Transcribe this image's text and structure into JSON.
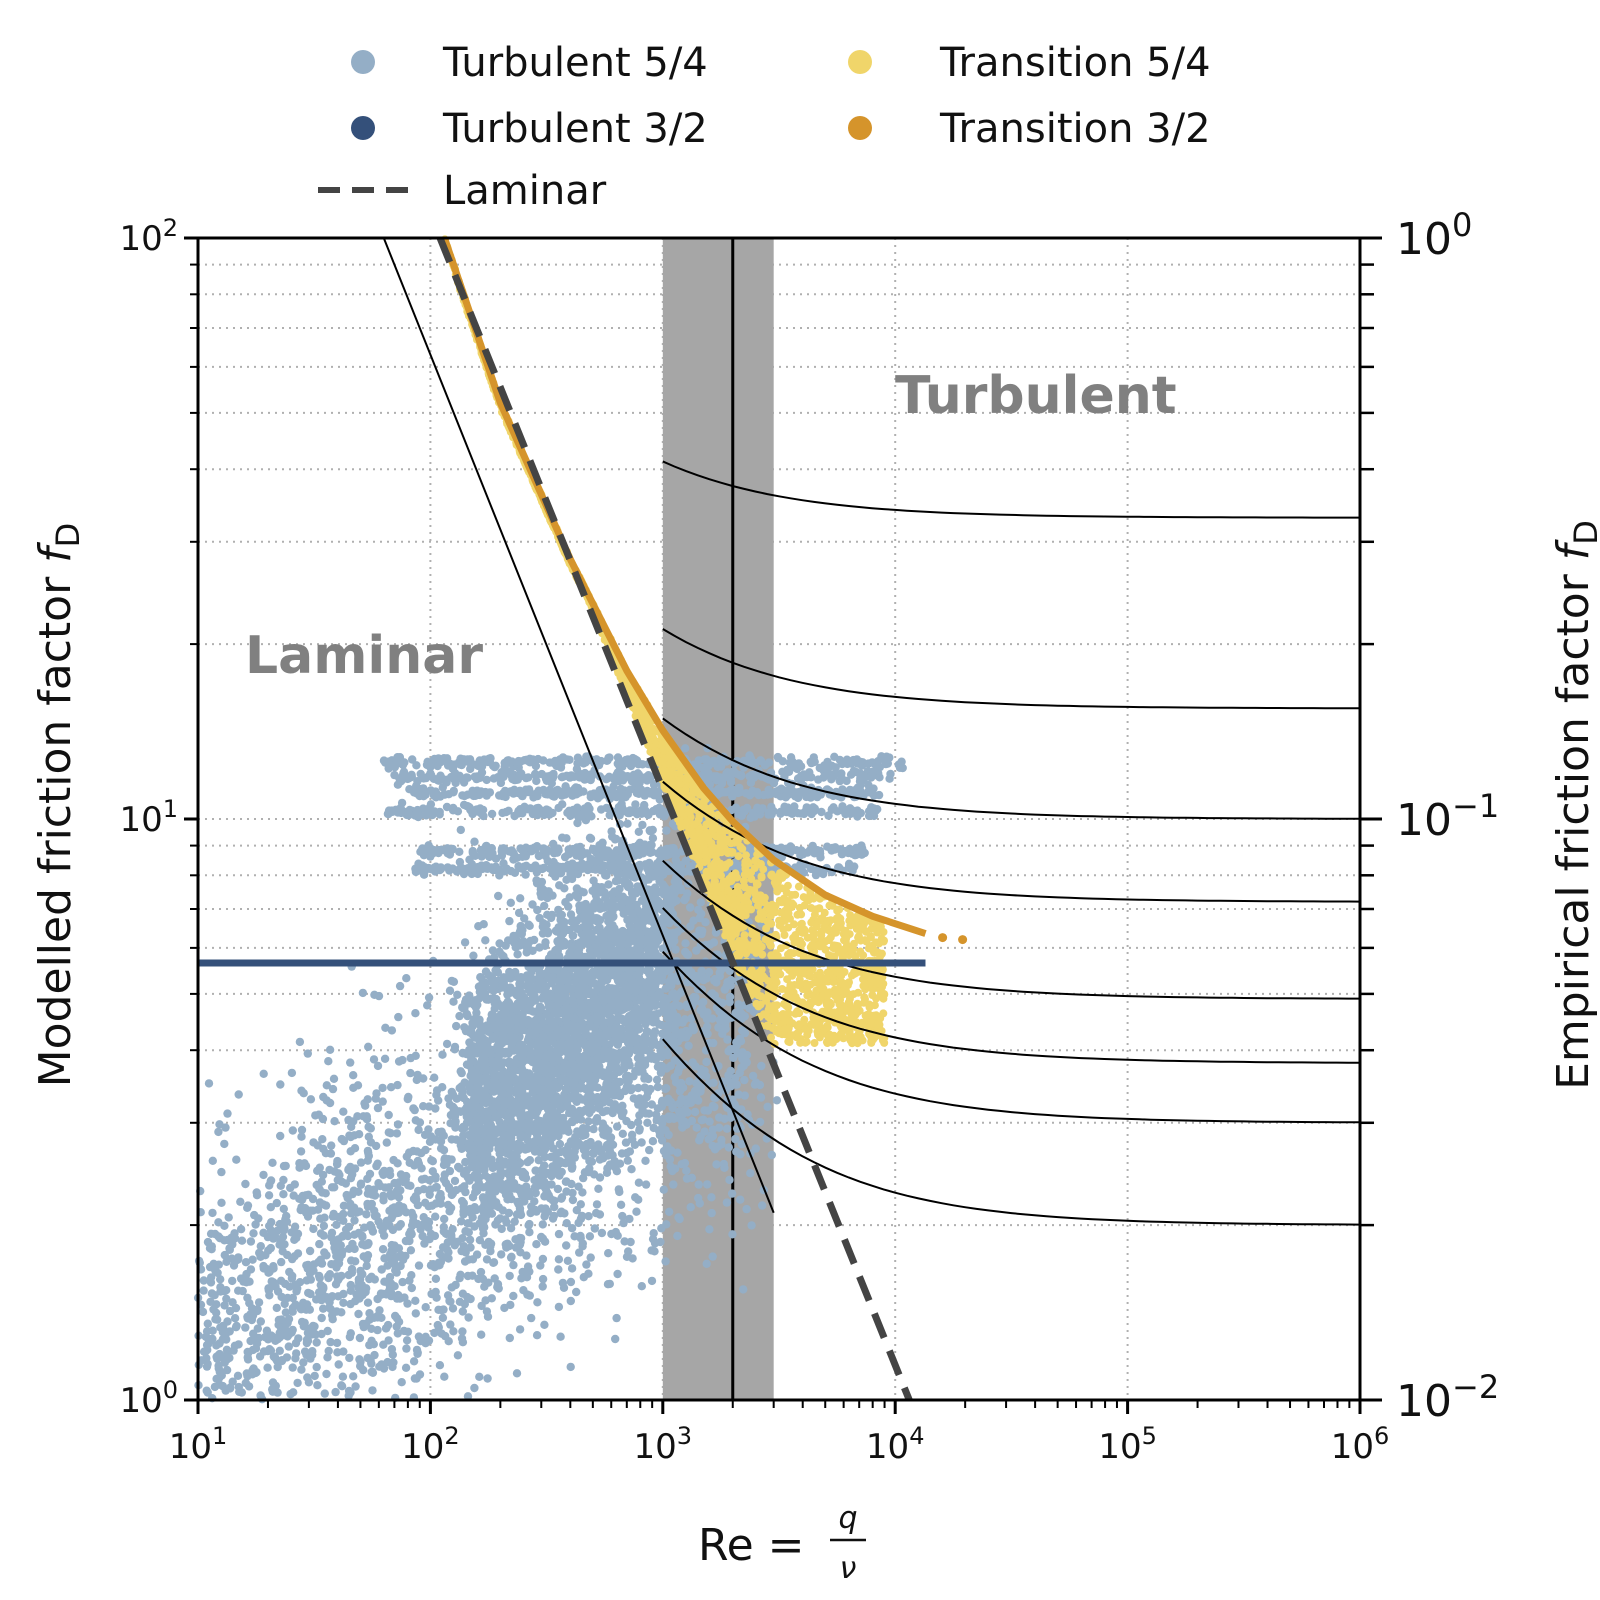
{
  "chart_data": {
    "type": "scatter",
    "xlabel_main": "Re = ",
    "xlabel_num": "q",
    "xlabel_den": "ν",
    "ylabel_left_main": "Modelled friction factor ",
    "ylabel_left_sym": "f",
    "ylabel_left_sub": "D",
    "ylabel_right_main": "Empirical friction factor ",
    "ylabel_right_sym": "f",
    "ylabel_right_sub": "D",
    "xscale": "log",
    "yscale_left": "log",
    "yscale_right": "log",
    "xlim": [
      10,
      1000000
    ],
    "ylim_left": [
      1,
      100
    ],
    "ylim_right": [
      0.01,
      1
    ],
    "grid": "dotted",
    "legend_location": "top (above plot, 2 columns)",
    "x_ticks": [
      {
        "base": "10",
        "exp": "1"
      },
      {
        "base": "10",
        "exp": "2"
      },
      {
        "base": "10",
        "exp": "3"
      },
      {
        "base": "10",
        "exp": "4"
      },
      {
        "base": "10",
        "exp": "5"
      },
      {
        "base": "10",
        "exp": "6"
      }
    ],
    "y_ticks_left": [
      {
        "base": "10",
        "exp": "0"
      },
      {
        "base": "10",
        "exp": "1"
      },
      {
        "base": "10",
        "exp": "2"
      }
    ],
    "y_ticks_right": [
      {
        "base": "10",
        "exp": "−2"
      },
      {
        "base": "10",
        "exp": "−1"
      },
      {
        "base": "10",
        "exp": "0"
      }
    ],
    "region_labels": {
      "laminar": "Laminar",
      "turbulent": "Turbulent"
    },
    "transition_band": {
      "x_from": 1000,
      "x_to": 3000,
      "x_line": 2000,
      "color": "#a6a6a6"
    },
    "series": [
      {
        "name": "Turbulent 5/4",
        "kind": "scatter",
        "color": "#94aec6",
        "clusters": [
          {
            "note": "main diagonal cloud",
            "x_start": 10,
            "y_start": 1.2,
            "x_end": 2600,
            "y_end": 5.0,
            "spread_dex": 0.16
          },
          {
            "note": "upper cloud",
            "x_start": 150,
            "y_start": 3.2,
            "x_end": 1100,
            "y_end": 6.5,
            "spread_dex": 0.12
          },
          {
            "note": "horizontal band",
            "x_start": 60,
            "y_start": 12.5,
            "x_end": 11000,
            "y_end": 12.5,
            "spread_dex": 0.005
          },
          {
            "note": "horizontal band",
            "x_start": 70,
            "y_start": 11.8,
            "x_end": 10000,
            "y_end": 11.8,
            "spread_dex": 0.005
          },
          {
            "note": "horizontal band",
            "x_start": 80,
            "y_start": 11.1,
            "x_end": 9000,
            "y_end": 11.1,
            "spread_dex": 0.005
          },
          {
            "note": "horizontal band",
            "x_start": 65,
            "y_start": 10.3,
            "x_end": 8500,
            "y_end": 10.3,
            "spread_dex": 0.005
          },
          {
            "note": "horizontal band",
            "x_start": 90,
            "y_start": 8.8,
            "x_end": 7500,
            "y_end": 8.8,
            "spread_dex": 0.005
          },
          {
            "note": "horizontal band",
            "x_start": 85,
            "y_start": 8.2,
            "x_end": 7000,
            "y_end": 8.2,
            "spread_dex": 0.005
          }
        ]
      },
      {
        "name": "Turbulent 3/2",
        "kind": "line",
        "color": "#34507a",
        "points": [
          [
            10,
            5.65
          ],
          [
            13500,
            5.65
          ]
        ]
      },
      {
        "name": "Transition 5/4",
        "kind": "scatter",
        "color": "#f0d56a",
        "note": "fan of points between the laminar line and the 3/2 transition curve",
        "upper_curve": [
          [
            115,
            100
          ],
          [
            200,
            52
          ],
          [
            400,
            28
          ],
          [
            700,
            18
          ],
          [
            1000,
            14.2
          ],
          [
            1500,
            11.3
          ],
          [
            2000,
            9.9
          ],
          [
            3000,
            8.5
          ],
          [
            5000,
            7.4
          ],
          [
            8000,
            6.8
          ],
          [
            13000,
            6.4
          ]
        ],
        "lower_x_max": 9000,
        "lower_y_min": 4.1
      },
      {
        "name": "Transition 3/2",
        "kind": "line",
        "color": "#d5942b",
        "points": [
          [
            115,
            100
          ],
          [
            200,
            52
          ],
          [
            400,
            28
          ],
          [
            700,
            18
          ],
          [
            1000,
            14.2
          ],
          [
            1500,
            11.3
          ],
          [
            2000,
            9.9
          ],
          [
            3000,
            8.5
          ],
          [
            5000,
            7.4
          ],
          [
            8000,
            6.8
          ],
          [
            13500,
            6.35
          ],
          [
            16000,
            6.25
          ],
          [
            19500,
            6.2
          ]
        ]
      },
      {
        "name": "Laminar",
        "kind": "dashed-line",
        "color": "#444444",
        "points": [
          [
            110,
            100
          ],
          [
            11500,
            1
          ]
        ]
      }
    ],
    "empirical_curves_right_axis": {
      "note": "thin black Colebrook-type curves plotted against the right axis",
      "color": "#000000",
      "plateaus": [
        0.33,
        0.155,
        0.1,
        0.072,
        0.049,
        0.038,
        0.03,
        0.02
      ],
      "laminar_reference": [
        [
          63,
          1
        ],
        [
          3000,
          0.021
        ]
      ]
    }
  },
  "legend": {
    "items": [
      {
        "label": "Turbulent 5/4",
        "color": "#94aec6",
        "marker": "dot"
      },
      {
        "label": "Transition 5/4",
        "color": "#f0d56a",
        "marker": "dot"
      },
      {
        "label": "Turbulent 3/2",
        "color": "#34507a",
        "marker": "dot"
      },
      {
        "label": "Transition 3/2",
        "color": "#d5942b",
        "marker": "dot"
      },
      {
        "label": "Laminar",
        "color": "#444444",
        "marker": "dash"
      }
    ]
  }
}
